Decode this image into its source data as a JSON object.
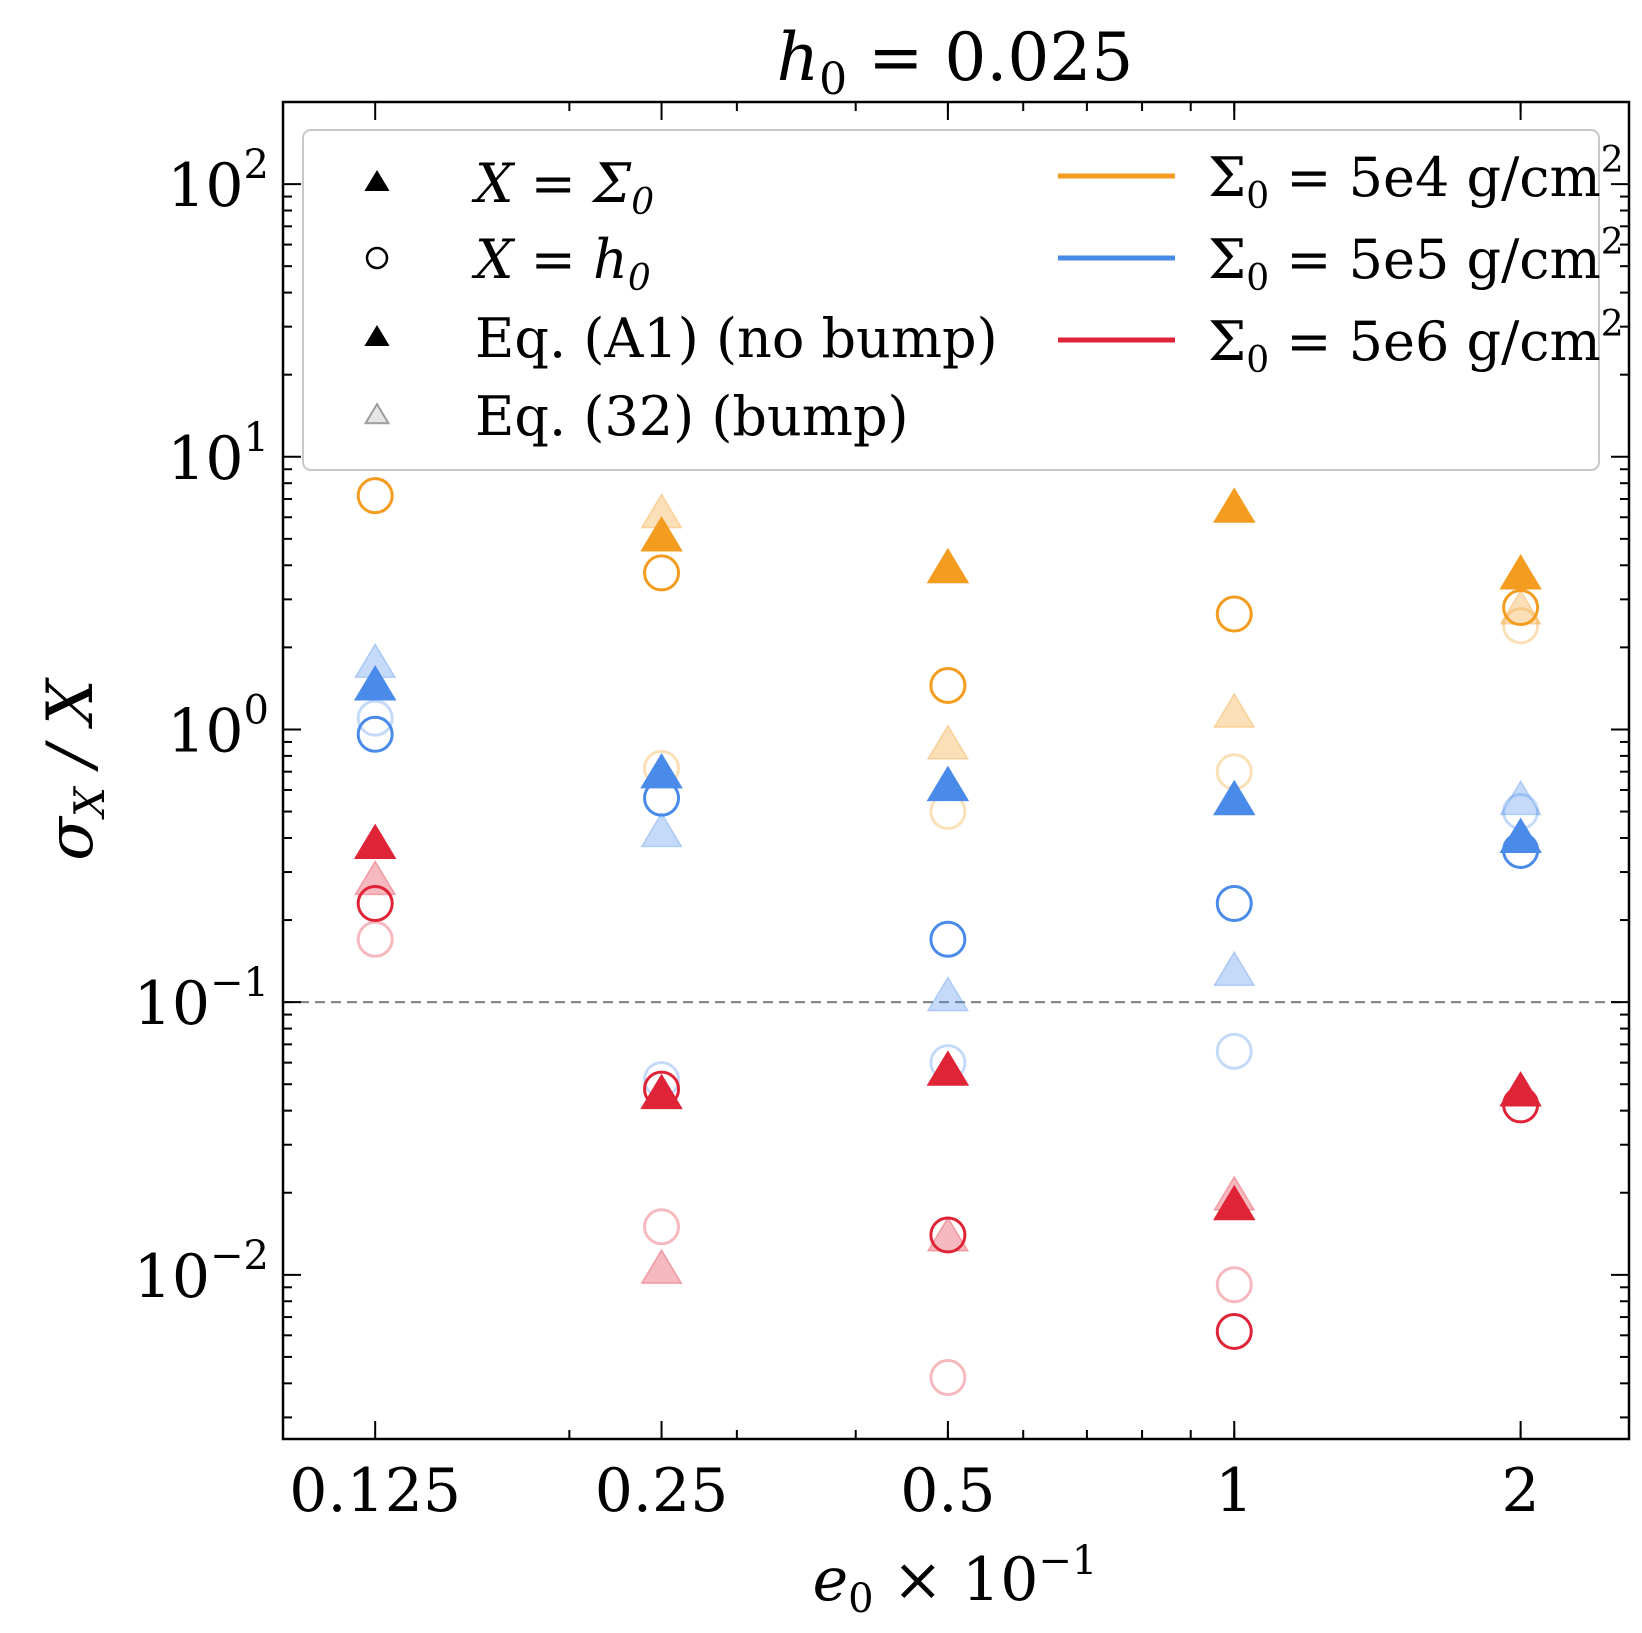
{
  "chart_data": {
    "type": "scatter",
    "title": {
      "var": "h",
      "sub": "0",
      "rest": " = 0.025"
    },
    "xlabel": {
      "var": "e",
      "sub": "0",
      "times": " × 10",
      "sup": "−1"
    },
    "ylabel": {
      "sigma": "σ",
      "sub": "X",
      "rest": " / X"
    },
    "xscale": "log",
    "yscale": "log",
    "xlim": [
      0.1,
      2.6
    ],
    "ylim": [
      0.0025,
      200
    ],
    "x_ticks": [
      0.125,
      0.25,
      0.5,
      1,
      2
    ],
    "x_tick_labels": [
      "0.125",
      "0.25",
      "0.5",
      "1",
      "2"
    ],
    "y_ticks": [
      0.01,
      0.1,
      1,
      10,
      100
    ],
    "y_tick_labels": [
      {
        "base": "10",
        "exp": "−2"
      },
      {
        "base": "10",
        "exp": "−1"
      },
      {
        "base": "10",
        "exp": "0"
      },
      {
        "base": "10",
        "exp": "1"
      },
      {
        "base": "10",
        "exp": "2"
      }
    ],
    "reference_line": {
      "y": 0.1,
      "style": "dashed",
      "color": "#888888"
    },
    "colors": {
      "5e4": "#f39c1f",
      "5e5": "#4a8bea",
      "5e6": "#e02438"
    },
    "legend": {
      "position": "upper",
      "markers": [
        {
          "symbol": "triangle-filled",
          "text": "X = Σ",
          "sub": "0",
          "faded": false
        },
        {
          "symbol": "circle-open",
          "text": "X = h",
          "sub": "0",
          "faded": false
        },
        {
          "symbol": "triangle-filled",
          "text": "Eq. (A1) (no bump)",
          "sub": "",
          "faded": false
        },
        {
          "symbol": "triangle-open",
          "text": "Eq. (32) (bump)",
          "sub": "",
          "faded": true
        }
      ],
      "lines": [
        {
          "key": "5e4",
          "pre": "Σ",
          "sub": "0",
          "mid": " = 5e4 g/cm",
          "sup": "2"
        },
        {
          "key": "5e5",
          "pre": "Σ",
          "sub": "0",
          "mid": " = 5e5 g/cm",
          "sup": "2"
        },
        {
          "key": "5e6",
          "pre": "Σ",
          "sub": "0",
          "mid": " = 5e6 g/cm",
          "sup": "2"
        }
      ]
    },
    "x": [
      0.125,
      0.25,
      0.5,
      1,
      2
    ],
    "series": [
      {
        "sigma": "5e4",
        "X": "Sigma0",
        "eq": "A1",
        "marker": "triangle",
        "values": [
          null,
          5.1,
          3.9,
          6.5,
          3.7
        ]
      },
      {
        "sigma": "5e4",
        "X": "Sigma0",
        "eq": "32",
        "marker": "triangle",
        "values": [
          null,
          6.2,
          0.88,
          1.15,
          2.75
        ]
      },
      {
        "sigma": "5e4",
        "X": "h0",
        "eq": "A1",
        "marker": "circle",
        "values": [
          7.2,
          3.75,
          1.45,
          2.65,
          2.8
        ]
      },
      {
        "sigma": "5e4",
        "X": "h0",
        "eq": "32",
        "marker": "circle",
        "values": [
          null,
          0.72,
          0.5,
          0.7,
          2.4
        ]
      },
      {
        "sigma": "5e5",
        "X": "Sigma0",
        "eq": "A1",
        "marker": "triangle",
        "values": [
          1.45,
          0.69,
          0.62,
          0.55,
          0.4
        ]
      },
      {
        "sigma": "5e5",
        "X": "Sigma0",
        "eq": "32",
        "marker": "triangle",
        "values": [
          1.75,
          0.42,
          0.105,
          0.13,
          0.55
        ]
      },
      {
        "sigma": "5e5",
        "X": "h0",
        "eq": "A1",
        "marker": "circle",
        "values": [
          0.96,
          0.56,
          0.17,
          0.23,
          0.36
        ]
      },
      {
        "sigma": "5e5",
        "X": "h0",
        "eq": "32",
        "marker": "circle",
        "values": [
          1.1,
          0.052,
          0.06,
          0.066,
          0.5
        ]
      },
      {
        "sigma": "5e6",
        "X": "Sigma0",
        "eq": "A1",
        "marker": "triangle",
        "values": [
          0.38,
          0.046,
          0.056,
          0.018,
          0.047
        ]
      },
      {
        "sigma": "5e6",
        "X": "Sigma0",
        "eq": "32",
        "marker": "triangle",
        "values": [
          0.28,
          0.0105,
          0.0138,
          0.0195,
          null
        ]
      },
      {
        "sigma": "5e6",
        "X": "h0",
        "eq": "A1",
        "marker": "circle",
        "values": [
          0.23,
          0.048,
          0.014,
          0.0062,
          0.042
        ]
      },
      {
        "sigma": "5e6",
        "X": "h0",
        "eq": "32",
        "marker": "circle",
        "values": [
          0.17,
          0.015,
          0.0042,
          0.0092,
          null
        ]
      }
    ]
  }
}
